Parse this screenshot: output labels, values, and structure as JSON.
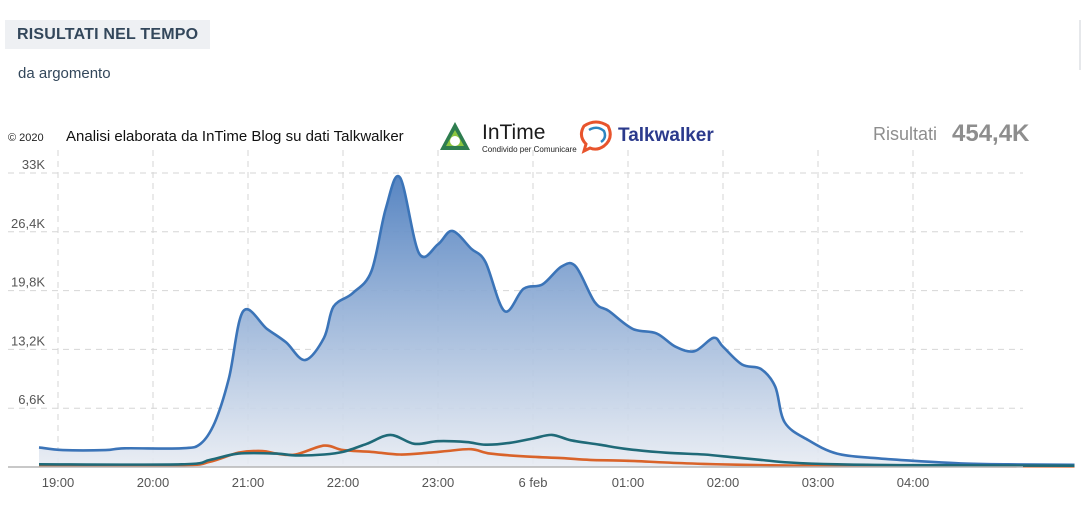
{
  "header": {
    "title": "RISULTATI NEL TEMPO",
    "subtitle": "da argomento"
  },
  "chart_meta": {
    "copyright": "© 2020",
    "credit": "Analisi elaborata da InTime Blog su dati Talkwalker",
    "brand_intime": "InTime",
    "brand_intime_tagline": "Condivido per Comunicare",
    "brand_talkwalker": "Talkwalker",
    "results_label": "Risultati",
    "results_value": "454,4K"
  },
  "colors": {
    "series_main": "#3b74b8",
    "series_teal": "#1f6a78",
    "series_orange": "#d9632a",
    "area_top": "#4f7fbf",
    "area_bottom": "#e8ecf3",
    "grid": "#d6d6d6"
  },
  "chart_data": {
    "type": "area",
    "title": "",
    "xlabel": "",
    "ylabel": "",
    "x_tick_labels": [
      "19:00",
      "20:00",
      "21:00",
      "22:00",
      "23:00",
      "6 feb",
      "01:00",
      "02:00",
      "03:00",
      "04:00"
    ],
    "x_tick_positions_hours": [
      0,
      1,
      2,
      3,
      4,
      5,
      6,
      7,
      8,
      9
    ],
    "y_tick_labels": [
      "6,6K",
      "13,2K",
      "19,8K",
      "26,4K",
      "33K"
    ],
    "y_tick_values": [
      6600,
      13200,
      19800,
      26400,
      33000
    ],
    "xlim": [
      0,
      10
    ],
    "ylim": [
      0,
      33000
    ],
    "grid": true,
    "series": [
      {
        "style": "area",
        "color_key": "series_main",
        "points": [
          [
            -0.2,
            2200
          ],
          [
            0.05,
            1900
          ],
          [
            0.5,
            1900
          ],
          [
            0.7,
            2100
          ],
          [
            1.3,
            2100
          ],
          [
            1.5,
            2600
          ],
          [
            1.65,
            5000
          ],
          [
            1.8,
            10000
          ],
          [
            1.95,
            17500
          ],
          [
            2.2,
            15500
          ],
          [
            2.4,
            14000
          ],
          [
            2.6,
            12000
          ],
          [
            2.8,
            14500
          ],
          [
            2.9,
            18000
          ],
          [
            3.1,
            19500
          ],
          [
            3.3,
            22000
          ],
          [
            3.45,
            29000
          ],
          [
            3.6,
            32500
          ],
          [
            3.8,
            24000
          ],
          [
            4.0,
            25000
          ],
          [
            4.15,
            26500
          ],
          [
            4.35,
            24500
          ],
          [
            4.5,
            23000
          ],
          [
            4.7,
            17500
          ],
          [
            4.9,
            20000
          ],
          [
            5.1,
            20500
          ],
          [
            5.3,
            22500
          ],
          [
            5.45,
            22500
          ],
          [
            5.65,
            18500
          ],
          [
            5.8,
            17500
          ],
          [
            6.05,
            15500
          ],
          [
            6.3,
            15000
          ],
          [
            6.5,
            13500
          ],
          [
            6.7,
            13000
          ],
          [
            6.9,
            14500
          ],
          [
            7.0,
            13500
          ],
          [
            7.2,
            11500
          ],
          [
            7.4,
            11000
          ],
          [
            7.55,
            9000
          ],
          [
            7.65,
            5000
          ],
          [
            7.9,
            3000
          ],
          [
            8.2,
            1500
          ],
          [
            8.6,
            1000
          ],
          [
            9.0,
            700
          ],
          [
            9.5,
            400
          ],
          [
            10.0,
            300
          ],
          [
            10.7,
            250
          ]
        ]
      },
      {
        "style": "line",
        "color_key": "series_teal",
        "points": [
          [
            -0.2,
            300
          ],
          [
            1.3,
            300
          ],
          [
            1.6,
            800
          ],
          [
            1.9,
            1500
          ],
          [
            2.3,
            1500
          ],
          [
            2.5,
            1300
          ],
          [
            2.8,
            1400
          ],
          [
            3.0,
            1700
          ],
          [
            3.25,
            2600
          ],
          [
            3.5,
            3600
          ],
          [
            3.75,
            2600
          ],
          [
            4.0,
            2900
          ],
          [
            4.3,
            2800
          ],
          [
            4.5,
            2500
          ],
          [
            4.75,
            2700
          ],
          [
            5.0,
            3200
          ],
          [
            5.2,
            3600
          ],
          [
            5.4,
            3000
          ],
          [
            5.7,
            2500
          ],
          [
            6.0,
            2000
          ],
          [
            6.4,
            1600
          ],
          [
            6.8,
            1400
          ],
          [
            7.1,
            1100
          ],
          [
            7.4,
            800
          ],
          [
            7.7,
            500
          ],
          [
            8.2,
            300
          ],
          [
            9.0,
            200
          ],
          [
            10.7,
            150
          ]
        ]
      },
      {
        "style": "line",
        "color_key": "series_orange",
        "points": [
          [
            -0.2,
            200
          ],
          [
            1.3,
            200
          ],
          [
            1.6,
            600
          ],
          [
            1.9,
            1600
          ],
          [
            2.15,
            1800
          ],
          [
            2.3,
            1500
          ],
          [
            2.5,
            1400
          ],
          [
            2.8,
            2400
          ],
          [
            3.0,
            1900
          ],
          [
            3.3,
            1700
          ],
          [
            3.6,
            1400
          ],
          [
            3.9,
            1600
          ],
          [
            4.1,
            1800
          ],
          [
            4.35,
            2000
          ],
          [
            4.55,
            1500
          ],
          [
            4.9,
            1200
          ],
          [
            5.3,
            1000
          ],
          [
            5.6,
            800
          ],
          [
            6.0,
            700
          ],
          [
            6.4,
            500
          ],
          [
            6.8,
            350
          ],
          [
            7.2,
            250
          ],
          [
            7.8,
            150
          ],
          [
            8.5,
            100
          ],
          [
            10.7,
            80
          ]
        ]
      }
    ]
  }
}
